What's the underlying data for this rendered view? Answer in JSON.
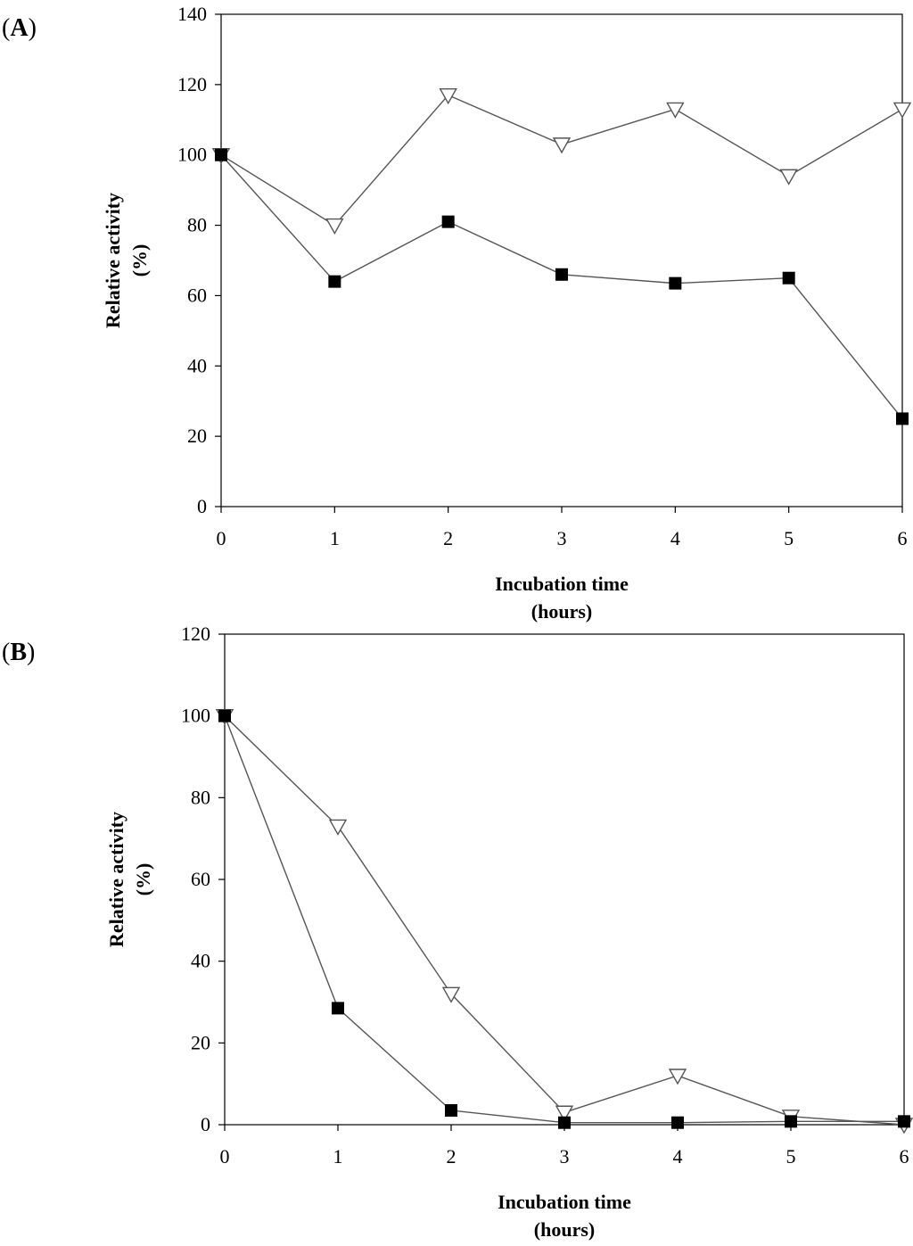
{
  "chart_data": [
    {
      "type": "line",
      "panel_label": "A",
      "title": "",
      "xlabel": [
        "Incubation time",
        "(hours)"
      ],
      "ylabel": [
        "Relative activity",
        "(%)"
      ],
      "xlim": [
        0,
        6
      ],
      "ylim": [
        0,
        140
      ],
      "xticks": [
        0,
        1,
        2,
        3,
        4,
        5,
        6
      ],
      "yticks": [
        0,
        20,
        40,
        60,
        80,
        100,
        120,
        140
      ],
      "x": [
        0,
        1,
        2,
        3,
        4,
        5,
        6
      ],
      "series": [
        {
          "name": "open triangles",
          "marker": "triangle-down-open",
          "values": [
            100,
            80,
            117,
            103,
            113,
            94,
            113
          ]
        },
        {
          "name": "filled squares",
          "marker": "square-filled",
          "values": [
            100,
            64,
            81,
            66,
            63.5,
            65,
            25
          ]
        }
      ],
      "grid": false
    },
    {
      "type": "line",
      "panel_label": "B",
      "title": "",
      "xlabel": [
        "Incubation time",
        "(hours)"
      ],
      "ylabel": [
        "Relative activity",
        "(%)"
      ],
      "xlim": [
        0,
        6
      ],
      "ylim": [
        0,
        120
      ],
      "xticks": [
        0,
        1,
        2,
        3,
        4,
        5,
        6
      ],
      "yticks": [
        0,
        20,
        40,
        60,
        80,
        100,
        120
      ],
      "x": [
        0,
        1,
        2,
        3,
        4,
        5,
        6
      ],
      "series": [
        {
          "name": "open triangles",
          "marker": "triangle-down-open",
          "values": [
            100,
            73,
            32,
            3,
            12,
            2,
            0
          ]
        },
        {
          "name": "filled squares",
          "marker": "square-filled",
          "values": [
            100,
            28.5,
            3.5,
            0.5,
            0.5,
            0.8,
            0.8
          ]
        }
      ],
      "grid": false
    }
  ]
}
